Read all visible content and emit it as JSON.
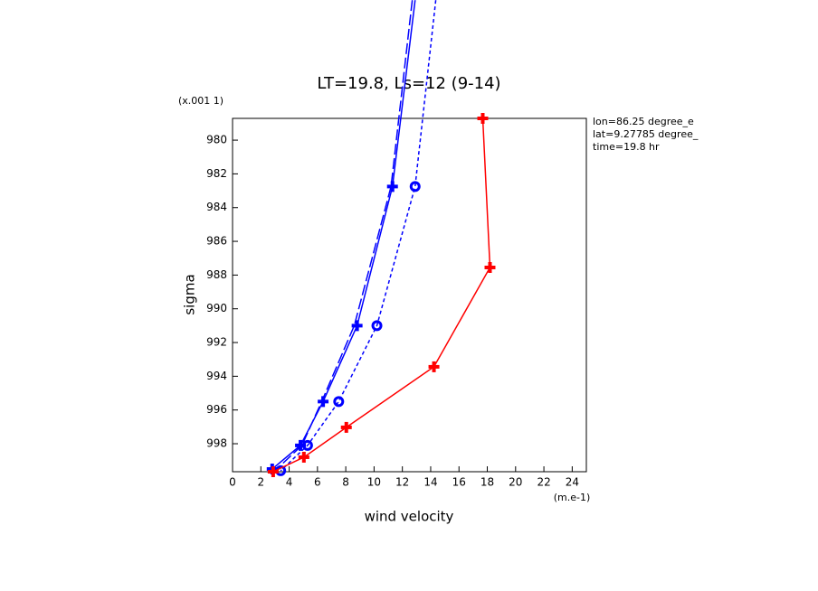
{
  "chart_data": {
    "type": "line",
    "title": "LT=19.8, Ls=12 (9-14)",
    "x_label": "wind velocity",
    "y_label": "sigma",
    "x_units": "(m.e-1)",
    "y_units": "(x.001 1)",
    "annotations": [
      "lon=86.25 degree_e",
      "lat=9.27785 degree_",
      "time=19.8 hr"
    ],
    "xlim": [
      0,
      25
    ],
    "ylim": [
      999.66,
      978.71
    ],
    "xticks": [
      0,
      2,
      4,
      6,
      8,
      10,
      12,
      14,
      16,
      18,
      20,
      22,
      24
    ],
    "yticks": [
      980,
      982,
      984,
      986,
      988,
      990,
      992,
      994,
      996,
      998
    ],
    "series": [
      {
        "color": "#0000ff",
        "dash": "none",
        "marker": "plus",
        "x": [
          12.9,
          11.3,
          8.8,
          6.4,
          4.8,
          2.8
        ],
        "values": [
          971.7,
          982.75,
          991.0,
          995.5,
          998.1,
          999.5
        ]
      },
      {
        "color": "#0000ff",
        "dash": "12,4",
        "marker": "none",
        "x": [
          12.7,
          11.2,
          8.6,
          6.3,
          4.9,
          3.0
        ],
        "values": [
          971.7,
          982.75,
          991.0,
          995.5,
          998.1,
          999.6
        ]
      },
      {
        "color": "#0000ff",
        "dash": "4,3",
        "marker": "circle",
        "x": [
          14.36,
          12.9,
          10.2,
          7.5,
          5.3,
          3.4
        ],
        "values": [
          971.7,
          982.75,
          991.0,
          995.5,
          998.1,
          999.6
        ]
      },
      {
        "color": "#ff0000",
        "dash": "none",
        "marker": "plus",
        "x": [
          17.68,
          18.19,
          14.23,
          8.04,
          5.04,
          2.87
        ],
        "values": [
          978.71,
          987.55,
          993.44,
          997.03,
          998.8,
          999.66
        ]
      }
    ]
  }
}
